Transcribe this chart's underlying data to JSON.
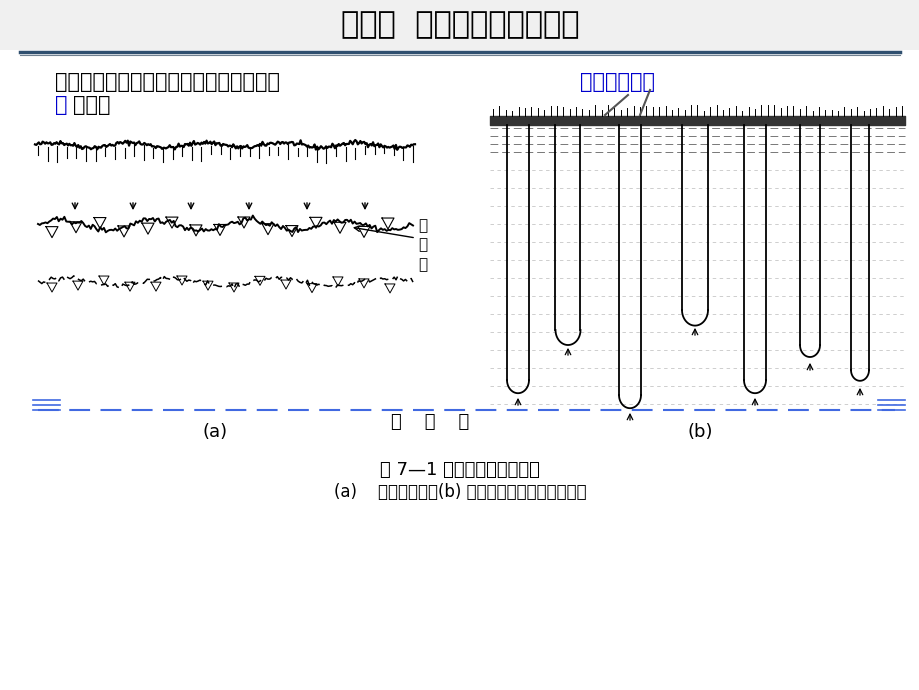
{
  "title": "第七章  地下水的补给与排泄",
  "bg_color": "#FFFFFF",
  "title_color": "#000000",
  "title_fontsize": 22,
  "text_color_black": "#000000",
  "text_color_blue": "#0000CD",
  "body_fontsize": 15,
  "fig_caption": "图 7—1 活塞式与捷径式下渗",
  "fig_caption2": "(a)    活塞式下渗；(b) 捷径式与活塞式下渗的结合",
  "label_a": "(a)",
  "label_b": "(b)",
  "label_shimian": "湿\n锋\n面",
  "label_qianshui": "潜    水    面",
  "line_blue_color": "#4169E1",
  "header_bg": "#F0F0F0",
  "header_line1": "#2F4F6F",
  "header_line2": "#708090"
}
